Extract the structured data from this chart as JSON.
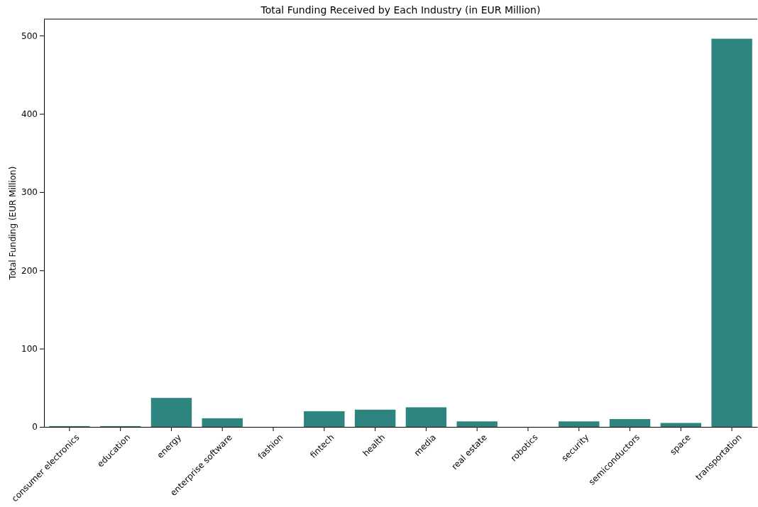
{
  "chart_data": {
    "type": "bar",
    "title": "Total Funding Received by Each Industry (in EUR Million)",
    "ylabel": "Total Funding (EUR Million)",
    "categories": [
      "consumer electronics",
      "education",
      "energy",
      "enterprise software",
      "fashion",
      "fintech",
      "health",
      "media",
      "real estate",
      "robotics",
      "security",
      "semiconductors",
      "space",
      "transportation"
    ],
    "values": [
      1,
      1,
      37,
      11,
      0,
      20,
      22,
      25,
      7,
      0,
      7,
      10,
      5,
      496
    ],
    "color": "#2e8580",
    "ylim": [
      0,
      521
    ],
    "yticks": [
      0,
      100,
      200,
      300,
      400,
      500
    ],
    "grid": false
  }
}
